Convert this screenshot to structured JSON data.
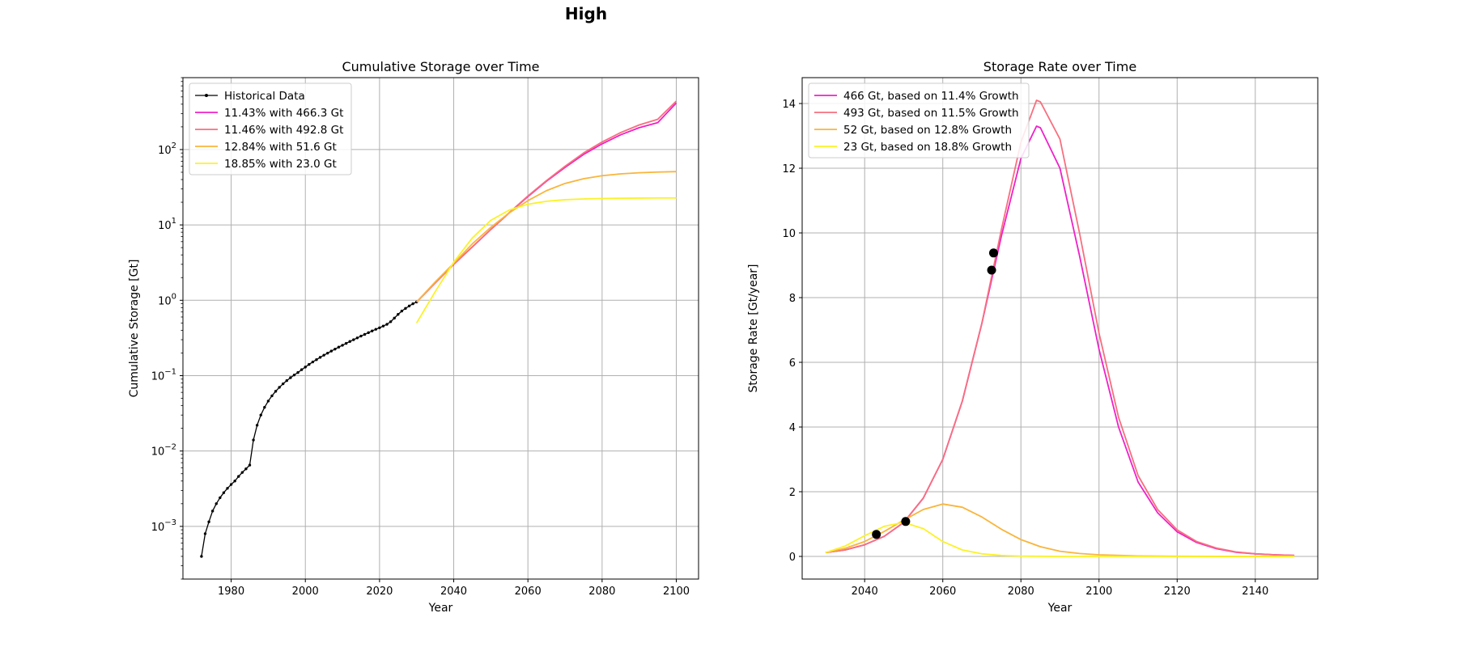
{
  "figure": {
    "title": "High"
  },
  "chart_data": [
    {
      "type": "line",
      "title": "Cumulative Storage over Time",
      "xlabel": "Year",
      "ylabel": "Cumulative Storage [Gt]",
      "yscale": "log",
      "xlim": [
        1967,
        2106
      ],
      "ylim": [
        0.0002,
        900
      ],
      "xticks": [
        1980,
        2000,
        2020,
        2040,
        2060,
        2080,
        2100
      ],
      "yticks": [
        0.001,
        0.01,
        0.1,
        1,
        10,
        100
      ],
      "ytick_labels": [
        {
          "base": "10",
          "exp": "−3"
        },
        {
          "base": "10",
          "exp": "−2"
        },
        {
          "base": "10",
          "exp": "−1"
        },
        {
          "base": "10",
          "exp": "0"
        },
        {
          "base": "10",
          "exp": "1"
        },
        {
          "base": "10",
          "exp": "2"
        }
      ],
      "grid": true,
      "legend": "upper-left",
      "series": [
        {
          "name": "Historical Data",
          "color": "#000000",
          "marker": true,
          "x": [
            1972,
            1973,
            1974,
            1975,
            1976,
            1977,
            1978,
            1979,
            1980,
            1981,
            1982,
            1983,
            1984,
            1985,
            1986,
            1987,
            1988,
            1989,
            1990,
            1991,
            1992,
            1993,
            1994,
            1995,
            1996,
            1997,
            1998,
            1999,
            2000,
            2001,
            2002,
            2003,
            2004,
            2005,
            2006,
            2007,
            2008,
            2009,
            2010,
            2011,
            2012,
            2013,
            2014,
            2015,
            2016,
            2017,
            2018,
            2019,
            2020,
            2021,
            2022,
            2023,
            2024,
            2025,
            2026,
            2027,
            2028,
            2029,
            2030
          ],
          "y": [
            0.0004,
            0.0008,
            0.00115,
            0.0016,
            0.002,
            0.0024,
            0.0028,
            0.0032,
            0.0036,
            0.004,
            0.0046,
            0.0052,
            0.0058,
            0.0065,
            0.014,
            0.022,
            0.03,
            0.038,
            0.046,
            0.054,
            0.062,
            0.07,
            0.078,
            0.086,
            0.094,
            0.102,
            0.11,
            0.12,
            0.13,
            0.141,
            0.152,
            0.163,
            0.175,
            0.187,
            0.199,
            0.212,
            0.225,
            0.239,
            0.253,
            0.268,
            0.284,
            0.3,
            0.317,
            0.335,
            0.353,
            0.372,
            0.392,
            0.412,
            0.432,
            0.455,
            0.48,
            0.52,
            0.58,
            0.65,
            0.72,
            0.78,
            0.84,
            0.9,
            0.95
          ]
        },
        {
          "name": "11.43% with 466.3 Gt",
          "color": "#ee22c8",
          "x": [
            2030,
            2035,
            2040,
            2045,
            2050,
            2055,
            2060,
            2065,
            2070,
            2075,
            2080,
            2085,
            2090,
            2095,
            2100
          ],
          "y": [
            0.95,
            1.7,
            3.0,
            5.1,
            8.7,
            14.5,
            23.8,
            38,
            58,
            86,
            119,
            157,
            195,
            228,
            415
          ]
        },
        {
          "name": "11.46% with 492.8 Gt",
          "color": "#f76f7e",
          "x": [
            2030,
            2035,
            2040,
            2045,
            2050,
            2055,
            2060,
            2065,
            2070,
            2075,
            2080,
            2085,
            2090,
            2095,
            2100
          ],
          "y": [
            0.95,
            1.7,
            3.0,
            5.1,
            8.7,
            14.6,
            24.2,
            38.7,
            60,
            90,
            126,
            168,
            212,
            252,
            440
          ]
        },
        {
          "name": "12.84% with 51.6 Gt",
          "color": "#f9b53b",
          "x": [
            2030,
            2035,
            2040,
            2045,
            2050,
            2055,
            2060,
            2065,
            2070,
            2075,
            2080,
            2085,
            2090,
            2095,
            2100
          ],
          "y": [
            0.95,
            1.75,
            3.1,
            5.6,
            9.3,
            14.5,
            21,
            28.5,
            35.5,
            41,
            45,
            47.6,
            49.2,
            50.3,
            51
          ]
        },
        {
          "name": "18.85% with 23.0 Gt",
          "color": "#fbf227",
          "x": [
            2030,
            2035,
            2040,
            2045,
            2050,
            2055,
            2060,
            2065,
            2070,
            2075,
            2080,
            2085,
            2090,
            2095,
            2100
          ],
          "y": [
            0.5,
            1.3,
            3.2,
            6.7,
            11.5,
            15.8,
            18.8,
            20.6,
            21.6,
            22.1,
            22.4,
            22.6,
            22.7,
            22.8,
            22.8
          ]
        }
      ]
    },
    {
      "type": "line",
      "title": "Storage Rate over Time",
      "xlabel": "Year",
      "ylabel": "Storage Rate [Gt/year]",
      "xlim": [
        2024,
        2156
      ],
      "ylim": [
        -0.7,
        14.8
      ],
      "xticks": [
        2040,
        2060,
        2080,
        2100,
        2120,
        2140
      ],
      "yticks": [
        0,
        2,
        4,
        6,
        8,
        10,
        12,
        14
      ],
      "grid": true,
      "legend": "upper-left",
      "series": [
        {
          "name": "466 Gt, based on 11.4% Growth",
          "color": "#ee22c8",
          "x": [
            2030,
            2035,
            2040,
            2045,
            2050,
            2055,
            2060,
            2065,
            2070,
            2075,
            2080,
            2084,
            2085,
            2090,
            2095,
            2100,
            2105,
            2110,
            2115,
            2120,
            2125,
            2130,
            2135,
            2140,
            2145,
            2150
          ],
          "y": [
            0.12,
            0.2,
            0.36,
            0.62,
            1.05,
            1.8,
            3.0,
            4.8,
            7.2,
            9.9,
            12.3,
            13.3,
            13.25,
            12.0,
            9.3,
            6.4,
            4.0,
            2.3,
            1.35,
            0.76,
            0.43,
            0.24,
            0.13,
            0.08,
            0.05,
            0.03
          ]
        },
        {
          "name": "493 Gt, based on 11.5% Growth",
          "color": "#f76f7e",
          "x": [
            2030,
            2035,
            2040,
            2045,
            2050,
            2055,
            2060,
            2065,
            2070,
            2075,
            2080,
            2084,
            2085,
            2090,
            2095,
            2100,
            2105,
            2110,
            2115,
            2120,
            2125,
            2130,
            2135,
            2140,
            2145,
            2150
          ],
          "y": [
            0.12,
            0.2,
            0.36,
            0.62,
            1.05,
            1.8,
            3.0,
            4.8,
            7.2,
            10.1,
            12.8,
            14.1,
            14.05,
            12.9,
            10.0,
            6.9,
            4.3,
            2.5,
            1.45,
            0.82,
            0.46,
            0.26,
            0.14,
            0.08,
            0.05,
            0.03
          ]
        },
        {
          "name": "52 Gt, based on 12.8% Growth",
          "color": "#f9b53b",
          "x": [
            2030,
            2035,
            2040,
            2045,
            2050,
            2055,
            2060,
            2065,
            2070,
            2075,
            2080,
            2085,
            2090,
            2095,
            2100,
            2110,
            2120,
            2130,
            2140,
            2150
          ],
          "y": [
            0.12,
            0.25,
            0.46,
            0.77,
            1.12,
            1.45,
            1.62,
            1.52,
            1.22,
            0.84,
            0.52,
            0.3,
            0.16,
            0.09,
            0.05,
            0.015,
            0.005,
            0.002,
            0.0,
            0.0
          ]
        },
        {
          "name": "23 Gt, based on 18.8% Growth",
          "color": "#fbf227",
          "x": [
            2030,
            2035,
            2040,
            2045,
            2050,
            2055,
            2060,
            2065,
            2070,
            2075,
            2080,
            2090,
            2100,
            2110,
            2120,
            2130,
            2140,
            2150
          ],
          "y": [
            0.12,
            0.32,
            0.64,
            0.93,
            1.05,
            0.86,
            0.46,
            0.2,
            0.08,
            0.03,
            0.01,
            0.0,
            0.0,
            0.0,
            0.0,
            0.0,
            0.0,
            0.0
          ]
        },
        {
          "name": "",
          "color": "#000000",
          "scatter": true,
          "x": [
            2043,
            2050.5,
            2072.5,
            2073
          ],
          "y": [
            0.68,
            1.08,
            8.85,
            9.38
          ]
        }
      ]
    }
  ]
}
